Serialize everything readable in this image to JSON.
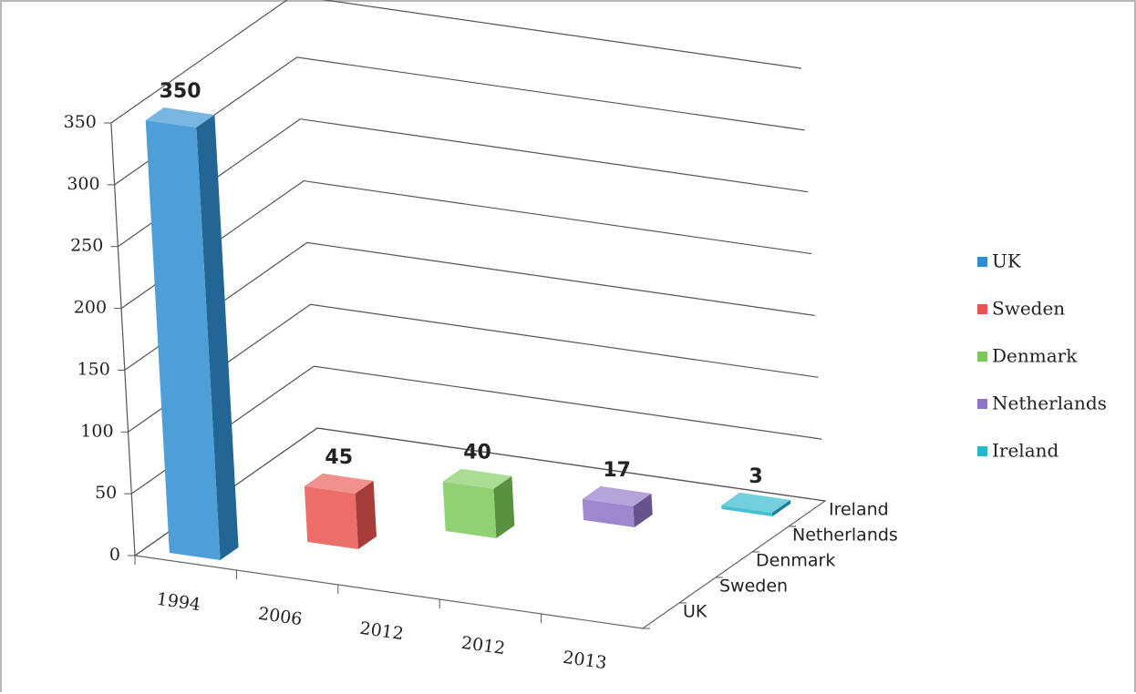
{
  "chart_data": {
    "type": "bar3d",
    "categories": [
      "1994",
      "2006",
      "2012",
      "2012",
      "2013"
    ],
    "series": [
      {
        "name": "UK",
        "color": "#2f8ed0",
        "values": [
          350,
          null,
          null,
          null,
          null
        ]
      },
      {
        "name": "Sweden",
        "color": "#e8554f",
        "values": [
          null,
          45,
          null,
          null,
          null
        ]
      },
      {
        "name": "Denmark",
        "color": "#7cc95a",
        "values": [
          null,
          null,
          40,
          null,
          null
        ]
      },
      {
        "name": "Netherlands",
        "color": "#8e72c4",
        "values": [
          null,
          null,
          null,
          17,
          null
        ]
      },
      {
        "name": "Ireland",
        "color": "#27b5c8",
        "values": [
          null,
          null,
          null,
          null,
          3
        ]
      }
    ],
    "ylim": [
      0,
      350
    ],
    "yticks": [
      0,
      50,
      100,
      150,
      200,
      250,
      300,
      350
    ],
    "grid": true,
    "legend": "right"
  }
}
